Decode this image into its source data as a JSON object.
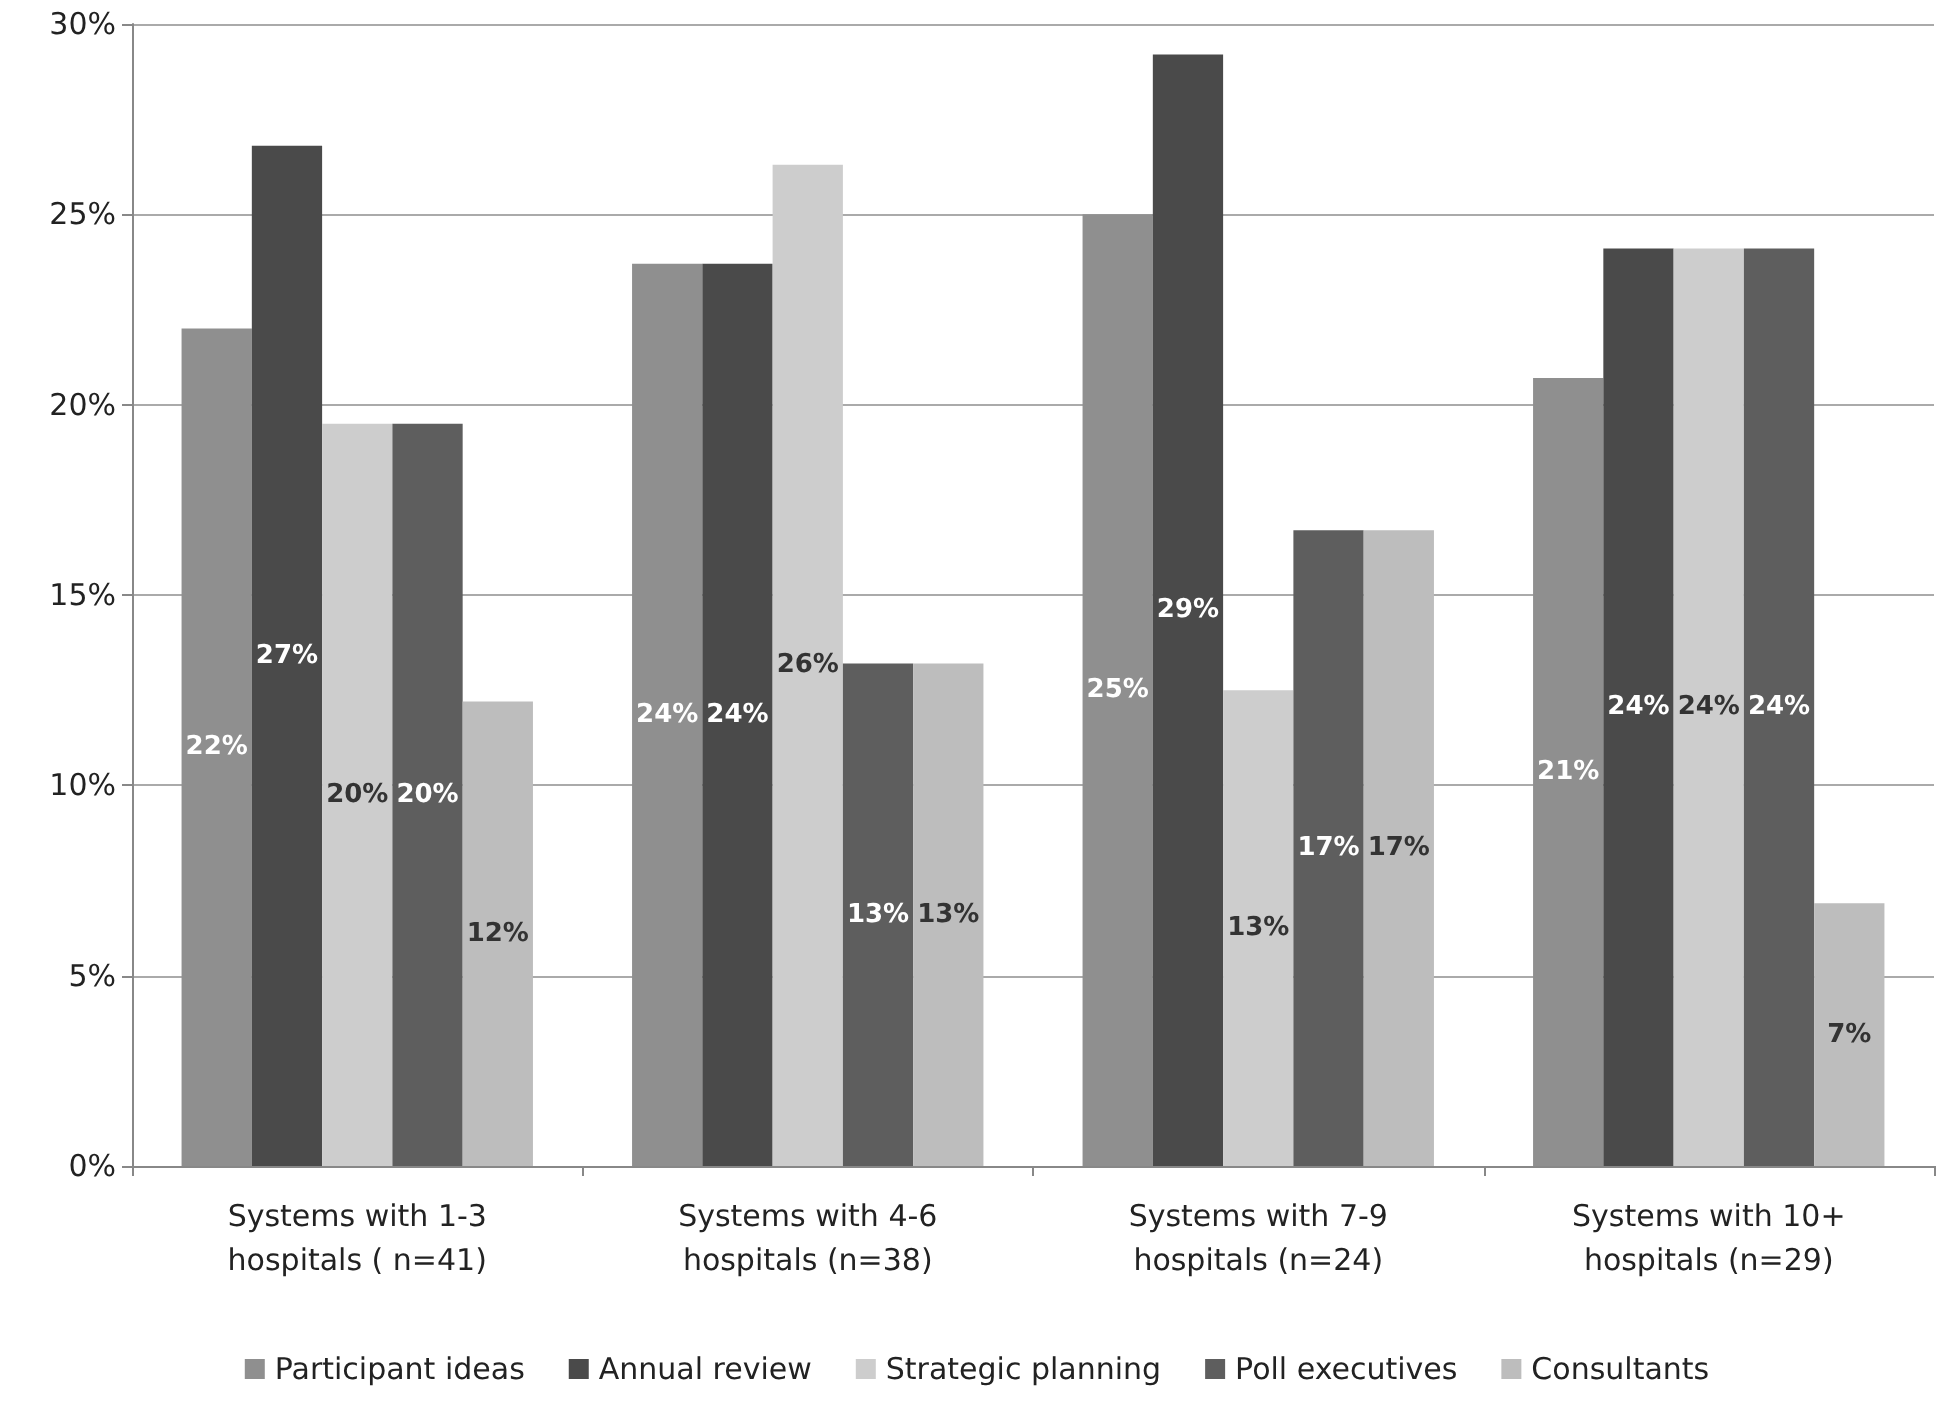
{
  "chart_data": {
    "type": "bar",
    "categories": [
      "Systems with 1-3\nhospitals ( n=41)",
      "Systems with 4-6\nhospitals (n=38)",
      "Systems with 7-9\nhospitals (n=24)",
      "Systems with 10+\nhospitals (n=29)"
    ],
    "series": [
      {
        "name": "Participant ideas",
        "color": "#8f8f8f",
        "values": [
          22.0,
          23.7,
          25.0,
          20.7
        ],
        "value_labels": [
          "22%",
          "24%",
          "25%",
          "21%"
        ]
      },
      {
        "name": "Annual review",
        "color": "#4a4a4a",
        "values": [
          26.8,
          23.7,
          29.2,
          24.1
        ],
        "value_labels": [
          "27%",
          "24%",
          "29%",
          "24%"
        ]
      },
      {
        "name": "Strategic planning",
        "color": "#cdcdcd",
        "values": [
          19.5,
          26.3,
          12.5,
          24.1
        ],
        "value_labels": [
          "20%",
          "26%",
          "13%",
          "24%"
        ]
      },
      {
        "name": "Poll executives",
        "color": "#5e5e5e",
        "values": [
          19.5,
          13.2,
          16.7,
          24.1
        ],
        "value_labels": [
          "20%",
          "13%",
          "17%",
          "24%"
        ]
      },
      {
        "name": "Consultants",
        "color": "#bdbdbd",
        "values": [
          12.2,
          13.2,
          16.7,
          6.9
        ],
        "value_labels": [
          "12%",
          "13%",
          "17%",
          "7%"
        ]
      }
    ],
    "ylim": [
      0,
      30
    ],
    "yticks": [
      {
        "value": 0,
        "label": "0%"
      },
      {
        "value": 5,
        "label": "5%"
      },
      {
        "value": 10,
        "label": "10%"
      },
      {
        "value": 15,
        "label": "15%"
      },
      {
        "value": 20,
        "label": "20%"
      },
      {
        "value": 25,
        "label": "25%"
      },
      {
        "value": 30,
        "label": "30%"
      }
    ],
    "grid": "y",
    "legend": "bottom"
  }
}
